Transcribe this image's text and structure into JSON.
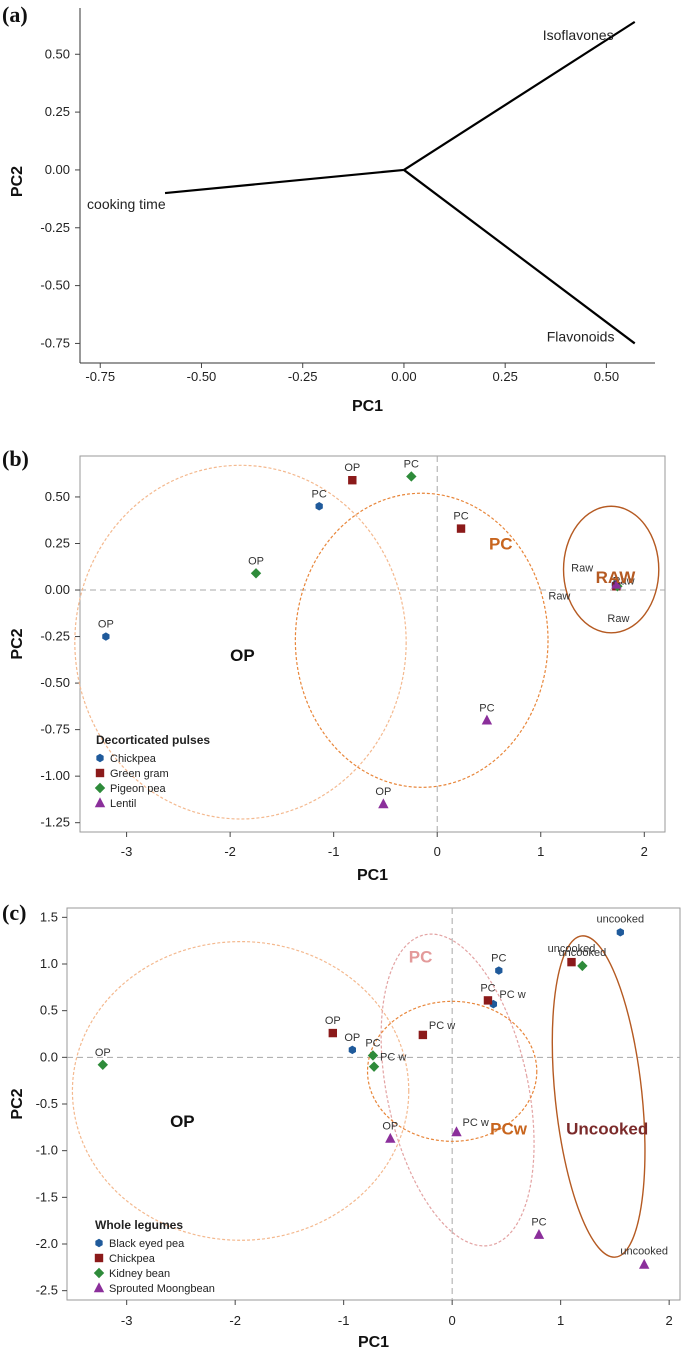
{
  "chart_data": [
    {
      "panel": "(a)",
      "type": "line",
      "xlabel": "PC1",
      "ylabel": "PC2",
      "xlim": [
        -0.8,
        0.62
      ],
      "ylim": [
        -0.8,
        0.7
      ],
      "xticks": [
        "-0.75",
        "-0.50",
        "-0.25",
        "0.00",
        "0.25",
        "0.50"
      ],
      "yticks": [
        "-0.75",
        "-0.50",
        "-0.25",
        "0.00",
        "0.25",
        "0.50"
      ],
      "loadings": [
        {
          "name": "Isoflavones",
          "x": 0.57,
          "y": 0.64
        },
        {
          "name": "cooking time",
          "x": -0.59,
          "y": -0.1
        },
        {
          "name": "Flavonoids",
          "x": 0.57,
          "y": -0.75
        }
      ]
    },
    {
      "panel": "(b)",
      "type": "scatter",
      "xlabel": "PC1",
      "ylabel": "PC2",
      "xlim": [
        -3.45,
        2.2
      ],
      "ylim": [
        -1.3,
        0.72
      ],
      "xticks": [
        "-3",
        "-2",
        "-1",
        "0",
        "1",
        "2"
      ],
      "yticks": [
        "-1.25",
        "-1.00",
        "-0.75",
        "-0.50",
        "-0.25",
        "0.00",
        "0.25",
        "0.50"
      ],
      "legend_title": "Decorticated pulses",
      "legend_placement": "bottom-left",
      "colors": {
        "Chickpea": "#1f5a9b",
        "Green gram": "#8b1a1a",
        "Pigeon pea": "#2e8b3a",
        "Lentil": "#8b2f9b"
      },
      "series": [
        {
          "name": "Chickpea",
          "marker": "hexagon",
          "points": [
            {
              "x": -3.2,
              "y": -0.25,
              "label": "OP"
            },
            {
              "x": -1.14,
              "y": 0.45,
              "label": "PC"
            },
            {
              "x": 1.72,
              "y": 0.03,
              "label": "Raw"
            }
          ]
        },
        {
          "name": "Green gram",
          "marker": "square",
          "points": [
            {
              "x": -0.82,
              "y": 0.59,
              "label": "OP"
            },
            {
              "x": 0.23,
              "y": 0.33,
              "label": "PC"
            },
            {
              "x": 1.73,
              "y": 0.02,
              "label": "Raw"
            }
          ]
        },
        {
          "name": "Pigeon pea",
          "marker": "diamond",
          "points": [
            {
              "x": -1.75,
              "y": 0.09,
              "label": "OP"
            },
            {
              "x": -0.25,
              "y": 0.61,
              "label": "PC"
            },
            {
              "x": 1.74,
              "y": 0.02,
              "label": "Raw"
            }
          ]
        },
        {
          "name": "Lentil",
          "marker": "triangle",
          "points": [
            {
              "x": -0.52,
              "y": -1.15,
              "label": "OP"
            },
            {
              "x": 0.48,
              "y": -0.7,
              "label": "PC"
            },
            {
              "x": 1.73,
              "y": 0.03,
              "label": "Raw"
            }
          ]
        }
      ],
      "raw_labels": [
        {
          "text": "Raw",
          "x": 1.8,
          "y": 0.05
        },
        {
          "text": "Raw",
          "x": 1.4,
          "y": 0.12
        },
        {
          "text": "Raw",
          "x": 1.18,
          "y": -0.03
        },
        {
          "text": "Raw",
          "x": 1.75,
          "y": -0.15
        }
      ],
      "groups": [
        {
          "label": "OP",
          "label_x": -2.0,
          "label_y": -0.35,
          "color": "#111111",
          "ellipse": {
            "cx": -1.9,
            "cy": -0.28,
            "rx": 1.6,
            "ry": 0.95
          },
          "ellipse_color": "#f4b98f",
          "dash": true
        },
        {
          "label": "PC",
          "label_x": 0.5,
          "label_y": 0.25,
          "color": "#c8651e",
          "ellipse": {
            "cx": -0.15,
            "cy": -0.27,
            "rx": 1.22,
            "ry": 0.79
          },
          "ellipse_color": "#e8863a",
          "dash": true
        },
        {
          "label": "RAW",
          "label_x": 1.53,
          "label_y": 0.07,
          "color": "#b55a22",
          "ellipse": {
            "cx": 1.68,
            "cy": 0.11,
            "rx": 0.46,
            "ry": 0.34
          },
          "ellipse_color": "#b55a22",
          "dash": false
        }
      ]
    },
    {
      "panel": "(c)",
      "type": "scatter",
      "xlabel": "PC1",
      "ylabel": "PC2",
      "xlim": [
        -3.55,
        2.1
      ],
      "ylim": [
        -2.6,
        1.6
      ],
      "xticks": [
        "-3",
        "-2",
        "-1",
        "0",
        "1",
        "2"
      ],
      "yticks": [
        "-2.5",
        "-2.0",
        "-1.5",
        "-1.0",
        "-0.5",
        "0.0",
        "0.5",
        "1.0",
        "1.5"
      ],
      "legend_title": "Whole legumes",
      "legend_placement": "bottom-left",
      "colors": {
        "Black eyed pea": "#1f5a9b",
        "Chickpea": "#8b1a1a",
        "Kidney bean": "#2e8b3a",
        "Sprouted Moongbean": "#8b2f9b"
      },
      "series": [
        {
          "name": "Black eyed pea",
          "marker": "hexagon",
          "points": [
            {
              "x": -0.92,
              "y": 0.08,
              "label": "OP"
            },
            {
              "x": 0.43,
              "y": 0.93,
              "label": "PC"
            },
            {
              "x": 0.38,
              "y": 0.57,
              "label": "PC w"
            },
            {
              "x": 1.55,
              "y": 1.34,
              "label": "uncooked"
            }
          ]
        },
        {
          "name": "Chickpea",
          "marker": "square",
          "points": [
            {
              "x": -1.1,
              "y": 0.26,
              "label": "OP"
            },
            {
              "x": 0.33,
              "y": 0.61,
              "label": "PC"
            },
            {
              "x": -0.27,
              "y": 0.24,
              "label": "PC w"
            },
            {
              "x": 1.1,
              "y": 1.02,
              "label": "uncooked"
            }
          ]
        },
        {
          "name": "Kidney bean",
          "marker": "diamond",
          "points": [
            {
              "x": -3.22,
              "y": -0.08,
              "label": "OP"
            },
            {
              "x": -0.73,
              "y": 0.02,
              "label": "PC"
            },
            {
              "x": -0.72,
              "y": -0.1,
              "label": "PC w"
            },
            {
              "x": 1.2,
              "y": 0.98,
              "label": "uncooked"
            }
          ]
        },
        {
          "name": "Sprouted Moongbean",
          "marker": "triangle",
          "points": [
            {
              "x": -0.57,
              "y": -0.87,
              "label": "OP"
            },
            {
              "x": 0.8,
              "y": -1.9,
              "label": "PC"
            },
            {
              "x": 0.04,
              "y": -0.8,
              "label": "PC w"
            },
            {
              "x": 1.77,
              "y": -2.22,
              "label": "uncooked"
            }
          ]
        }
      ],
      "groups": [
        {
          "label": "OP",
          "label_x": -2.6,
          "label_y": -0.68,
          "color": "#111111",
          "ellipse": {
            "cx": -1.95,
            "cy": -0.36,
            "rx": 1.55,
            "ry": 1.6
          },
          "ellipse_color": "#f4b98f",
          "dash": true
        },
        {
          "label": "PC",
          "label_x": -0.4,
          "label_y": 1.08,
          "color": "#e39a9a",
          "ellipse": {
            "cx": 0.05,
            "cy": -0.35,
            "rx": 0.65,
            "ry": 1.7,
            "rotate": -12
          },
          "ellipse_color": "#e3a3a3",
          "dash": true
        },
        {
          "label": "PCw",
          "label_x": 0.35,
          "label_y": -0.76,
          "color": "#c8651e",
          "ellipse": {
            "cx": 0.0,
            "cy": -0.15,
            "rx": 0.78,
            "ry": 0.75
          },
          "ellipse_color": "#e8863a",
          "dash": true
        },
        {
          "label": "Uncooked",
          "label_x": 1.05,
          "label_y": -0.76,
          "color": "#7b2a2a",
          "ellipse": {
            "cx": 1.35,
            "cy": -0.42,
            "rx": 0.4,
            "ry": 1.73,
            "rotate": -6
          },
          "ellipse_color": "#b55a22",
          "dash": false
        }
      ]
    }
  ]
}
